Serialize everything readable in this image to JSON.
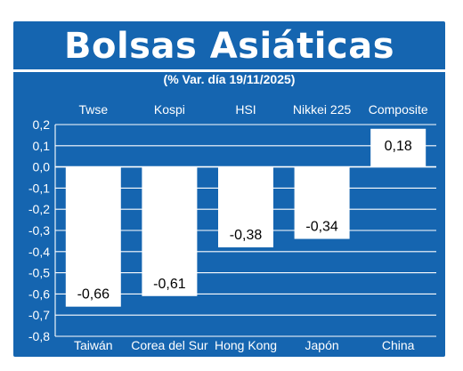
{
  "header": {
    "title": "Bolsas Asiáticas",
    "subtitle": "(% Var. día  19/11/2025)"
  },
  "chart_data": {
    "type": "bar",
    "title": "Bolsas Asiáticas",
    "subtitle": "(% Var. día  19/11/2025)",
    "index_names": [
      "Twse",
      "Kospi",
      "HSI",
      "Nikkei 225",
      "Composite"
    ],
    "categories": [
      "Taiwán",
      "Corea del Sur",
      "Hong Kong",
      "Japón",
      "China"
    ],
    "values": [
      -0.66,
      -0.61,
      -0.38,
      -0.34,
      0.18
    ],
    "value_labels": [
      "-0,66",
      "-0,61",
      "-0,38",
      "-0,34",
      "0,18"
    ],
    "ylim": [
      -0.8,
      0.2
    ],
    "yticks": [
      0.2,
      0.1,
      0.0,
      -0.1,
      -0.2,
      -0.3,
      -0.4,
      -0.5,
      -0.6,
      -0.7,
      -0.8
    ],
    "ytick_labels": [
      "0,2",
      "0,1",
      "0,0",
      "-0,1",
      "-0,2",
      "-0,3",
      "-0,4",
      "-0,5",
      "-0,6",
      "-0,7",
      "-0,8"
    ],
    "grid": true,
    "xlabel": "",
    "ylabel": "",
    "colors": {
      "background": "#1565b0",
      "bar": "#ffffff",
      "grid": "#ffffff",
      "text": "#ffffff",
      "label": "#000000"
    }
  }
}
